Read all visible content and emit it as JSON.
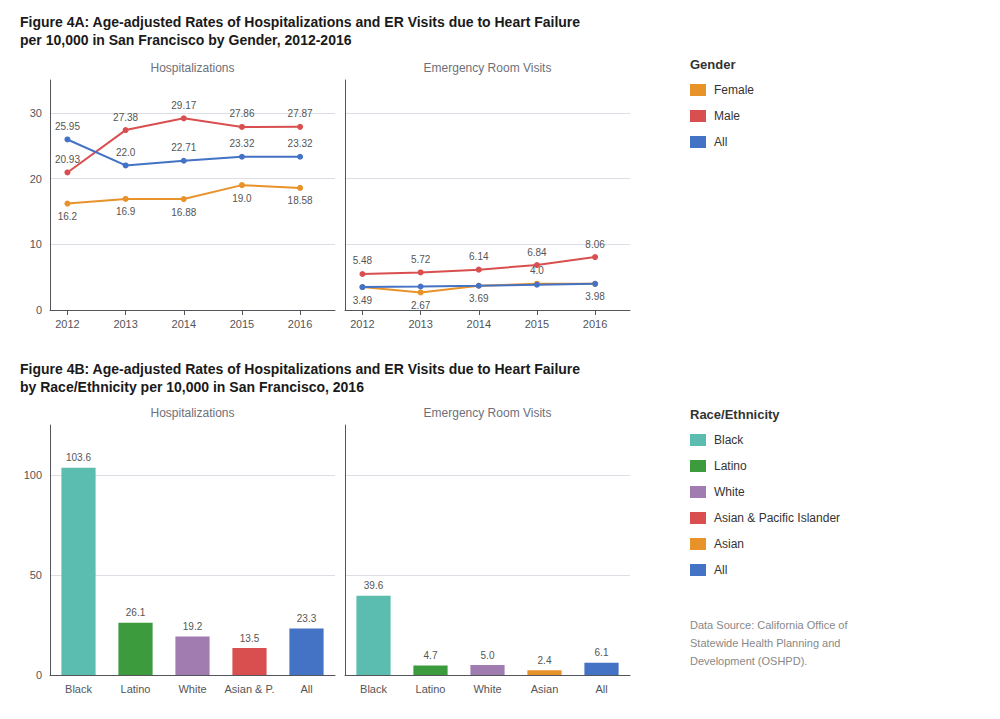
{
  "chart_data": [
    {
      "type": "line",
      "title": "Figure 4A: Age-adjusted Rates of Hospitalizations and ER Visits due to Heart Failure\nper 10,000 in San Francisco by Gender, 2012-2016",
      "subtitle": "Hospitalizations",
      "x": [
        2012,
        2013,
        2014,
        2015,
        2016
      ],
      "xlim": [
        2011.7,
        2016.6
      ],
      "xticks": [
        2012,
        2013,
        2014,
        2015,
        2016
      ],
      "ylim": [
        0,
        35
      ],
      "yticks": [
        0,
        10,
        20,
        30
      ],
      "grid": true,
      "data_labels": true,
      "marker": "circle",
      "legend": "right",
      "legend_title": "Gender",
      "series": [
        {
          "name": "Female",
          "color": "#E8922A",
          "values": [
            16.2,
            16.9,
            16.88,
            19.0,
            18.58
          ],
          "value_labels": [
            "16.2",
            "16.9",
            "16.88",
            "19.0",
            "18.58"
          ]
        },
        {
          "name": "Male",
          "color": "#D94F4F",
          "values": [
            20.93,
            27.38,
            29.17,
            27.86,
            27.87
          ]
        },
        {
          "name": "All",
          "color": "#4472C4",
          "values": [
            25.95,
            22.0,
            22.71,
            23.32,
            23.32
          ],
          "value_labels": [
            "25.95",
            "22.0",
            "22.71",
            "23.32",
            "23.32"
          ]
        }
      ]
    },
    {
      "type": "line",
      "subtitle": "Emergency Room Visits",
      "x": [
        2012,
        2013,
        2014,
        2015,
        2016
      ],
      "xlim": [
        2011.7,
        2016.6
      ],
      "xticks": [
        2012,
        2013,
        2014,
        2015,
        2016
      ],
      "ylim": [
        0,
        35
      ],
      "yticks": [
        0,
        10,
        20,
        30
      ],
      "grid": true,
      "tick_labels": "x",
      "data_labels": true,
      "marker": "circle",
      "series": [
        {
          "name": "Female",
          "color": "#E8922A",
          "values": [
            3.49,
            2.67,
            3.69,
            4.0,
            3.98
          ],
          "value_labels": [
            "3.49",
            "2.67",
            "3.69",
            "4.0",
            "3.98"
          ]
        },
        {
          "name": "Male",
          "color": "#D94F4F",
          "values": [
            5.48,
            5.72,
            6.14,
            6.84,
            8.06
          ]
        },
        {
          "name": "All",
          "color": "#4472C4",
          "values": [
            3.49,
            3.58,
            3.69,
            3.84,
            3.98
          ],
          "data_labels": false
        }
      ]
    },
    {
      "type": "bar",
      "title": "Figure 4B: Age-adjusted Rates of Hospitalizations and ER Visits due to Heart Failure\nby Race/Ethnicity per 10,000 in San Francisco, 2016",
      "subtitle": "Hospitalizations",
      "categories": [
        "Black",
        "Latino",
        "White",
        "Asian & P.",
        "All"
      ],
      "values": [
        103.6,
        26.1,
        19.2,
        13.5,
        23.3
      ],
      "colors": [
        "#5BBCB0",
        "#3C9B3C",
        "#A07CB0",
        "#D94F4F",
        "#4472C4"
      ],
      "ylim": [
        0,
        125
      ],
      "yticks": [
        0,
        50,
        100
      ],
      "grid": true,
      "data_labels": true,
      "legend": "right",
      "legend_title": "Race/Ethnicity",
      "legend_entries": [
        {
          "name": "Black",
          "color": "#5BBCB0"
        },
        {
          "name": "Latino",
          "color": "#3C9B3C"
        },
        {
          "name": "White",
          "color": "#A07CB0"
        },
        {
          "name": "Asian & Pacific Islander",
          "color": "#D94F4F"
        },
        {
          "name": "Asian",
          "color": "#E8922A"
        },
        {
          "name": "All",
          "color": "#4472C4"
        }
      ],
      "annotations": [
        "Data Source: California Office of\nStatewide Health Planning and\nDevelopment (OSHPD)."
      ]
    },
    {
      "type": "bar",
      "subtitle": "Emergency Room Visits",
      "categories": [
        "Black",
        "Latino",
        "White",
        "Asian",
        "All"
      ],
      "values": [
        39.6,
        4.7,
        5.0,
        2.4,
        6.1
      ],
      "value_labels": [
        "39.6",
        "4.7",
        "5.0",
        "2.4",
        "6.1"
      ],
      "colors": [
        "#5BBCB0",
        "#3C9B3C",
        "#A07CB0",
        "#E8922A",
        "#4472C4"
      ],
      "ylim": [
        0,
        125
      ],
      "yticks": [
        0,
        50,
        100
      ],
      "grid": true,
      "tick_labels": "x",
      "data_labels": true
    }
  ]
}
